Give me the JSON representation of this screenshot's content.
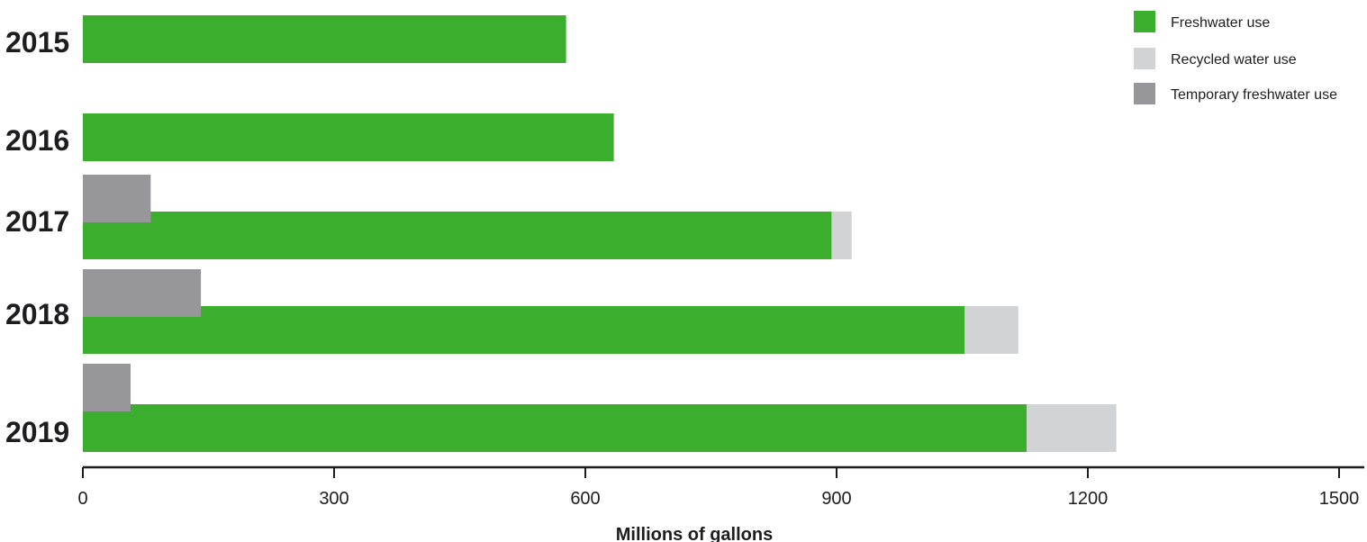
{
  "chart_data": {
    "type": "bar",
    "orientation": "horizontal",
    "categories": [
      "2015",
      "2016",
      "2017",
      "2018",
      "2019"
    ],
    "series": [
      {
        "name": "Freshwater use",
        "color": "#3cae2e",
        "values": [
          577,
          634,
          894,
          1053,
          1127
        ]
      },
      {
        "name": "Recycled water use",
        "color": "#d2d3d5",
        "values": [
          0,
          0,
          24,
          64,
          107
        ]
      },
      {
        "name": "Temporary freshwater use",
        "color": "#96969b",
        "values": [
          0,
          0,
          81,
          141,
          57
        ]
      }
    ],
    "xlabel": "Millions of gallons",
    "xlim": [
      0,
      1530
    ],
    "xticks": [
      0,
      300,
      600,
      900,
      1200,
      1500
    ],
    "legend_position": "top-right"
  }
}
